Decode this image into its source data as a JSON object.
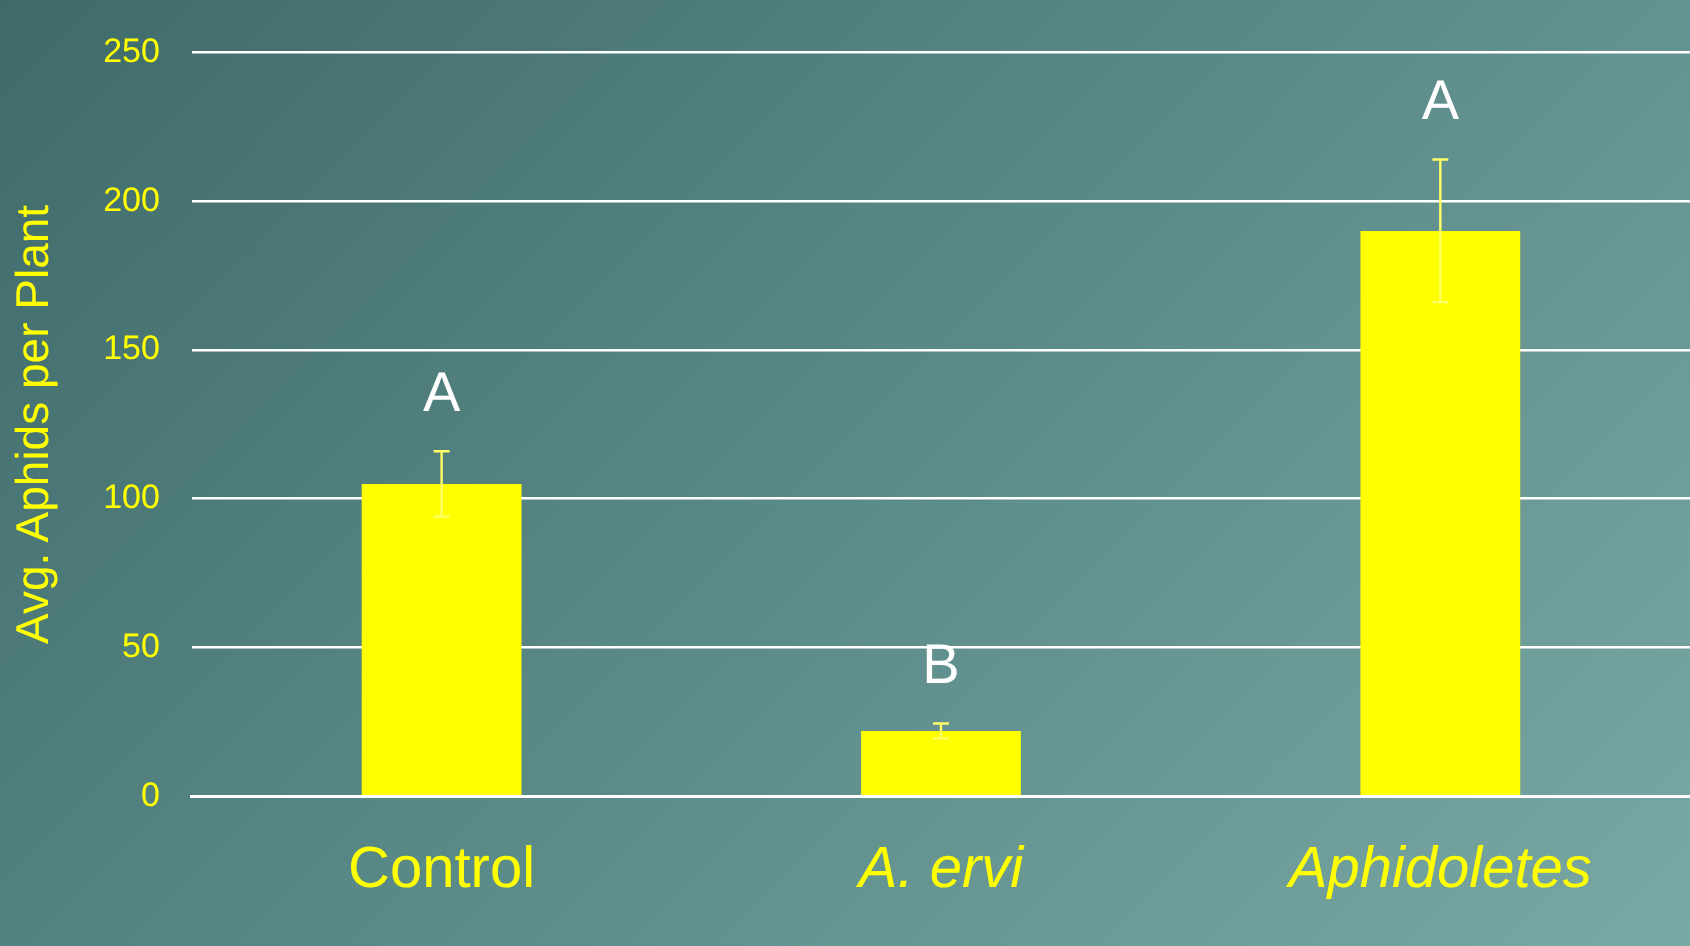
{
  "chart_data": {
    "type": "bar",
    "ylabel": "Avg. Aphids per Plant",
    "categories": [
      "Control",
      "A. ervi",
      "Aphidoletes"
    ],
    "values": [
      105,
      22,
      190
    ],
    "color": "#ffff00",
    "errors": [
      11,
      2.5,
      24
    ],
    "ylim": [
      0,
      250
    ],
    "yticks": [
      0,
      50,
      100,
      150,
      200,
      250
    ],
    "grid": "y",
    "legend": false,
    "annotations": [
      "A",
      "B",
      "A"
    ]
  }
}
